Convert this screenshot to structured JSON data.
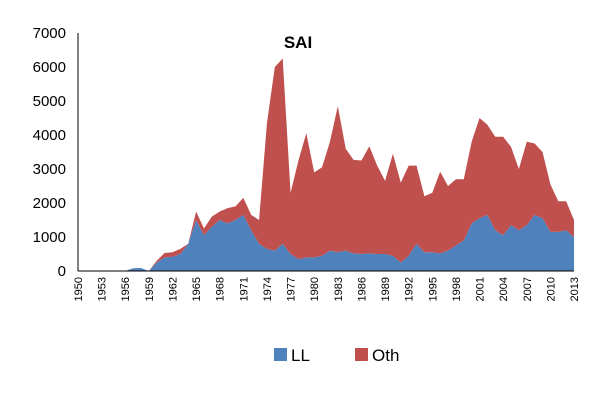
{
  "chart_data": {
    "type": "area",
    "stacked": true,
    "title": "SAI",
    "xlabel": "",
    "ylabel": "",
    "ylim": [
      0,
      7000
    ],
    "yticks": [
      0,
      1000,
      2000,
      3000,
      4000,
      5000,
      6000,
      7000
    ],
    "xticks": [
      1950,
      1953,
      1956,
      1959,
      1962,
      1965,
      1968,
      1971,
      1974,
      1977,
      1980,
      1983,
      1986,
      1989,
      1992,
      1995,
      1998,
      2001,
      2004,
      2007,
      2010,
      2013
    ],
    "grid": false,
    "legend_position": "bottom",
    "x": [
      1950,
      1951,
      1952,
      1953,
      1954,
      1955,
      1956,
      1957,
      1958,
      1959,
      1960,
      1961,
      1962,
      1963,
      1964,
      1965,
      1966,
      1967,
      1968,
      1969,
      1970,
      1971,
      1972,
      1973,
      1974,
      1975,
      1976,
      1977,
      1978,
      1979,
      1980,
      1981,
      1982,
      1983,
      1984,
      1985,
      1986,
      1987,
      1988,
      1989,
      1990,
      1991,
      1992,
      1993,
      1994,
      1995,
      1996,
      1997,
      1998,
      1999,
      2000,
      2001,
      2002,
      2003,
      2004,
      2005,
      2006,
      2007,
      2008,
      2009,
      2010,
      2011,
      2012,
      2013
    ],
    "series": [
      {
        "name": "LL",
        "color": "#4f81bd",
        "values": [
          0,
          0,
          0,
          0,
          0,
          0,
          0,
          80,
          90,
          0,
          250,
          400,
          420,
          500,
          800,
          1500,
          1050,
          1300,
          1500,
          1400,
          1500,
          1650,
          1200,
          800,
          650,
          600,
          800,
          500,
          350,
          400,
          400,
          450,
          600,
          550,
          600,
          520,
          500,
          520,
          500,
          500,
          450,
          250,
          450,
          800,
          550,
          550,
          520,
          600,
          750,
          900,
          1400,
          1550,
          1650,
          1200,
          1050,
          1350,
          1200,
          1350,
          1650,
          1550,
          1150,
          1150,
          1200,
          1000
        ]
      },
      {
        "name": "Oth",
        "color": "#c0504d",
        "values": [
          0,
          0,
          0,
          0,
          0,
          0,
          0,
          0,
          0,
          0,
          50,
          130,
          130,
          150,
          0,
          250,
          200,
          300,
          250,
          450,
          400,
          500,
          450,
          700,
          3700,
          5400,
          5450,
          1800,
          2900,
          3650,
          2500,
          2600,
          3200,
          4300,
          3000,
          2750,
          2750,
          3150,
          2600,
          2150,
          3000,
          2350,
          2650,
          2300,
          1650,
          1750,
          2400,
          1900,
          1950,
          1800,
          2400,
          2950,
          2650,
          2750,
          2900,
          2300,
          1800,
          2450,
          2100,
          1950,
          1400,
          900,
          850,
          500
        ]
      }
    ]
  }
}
